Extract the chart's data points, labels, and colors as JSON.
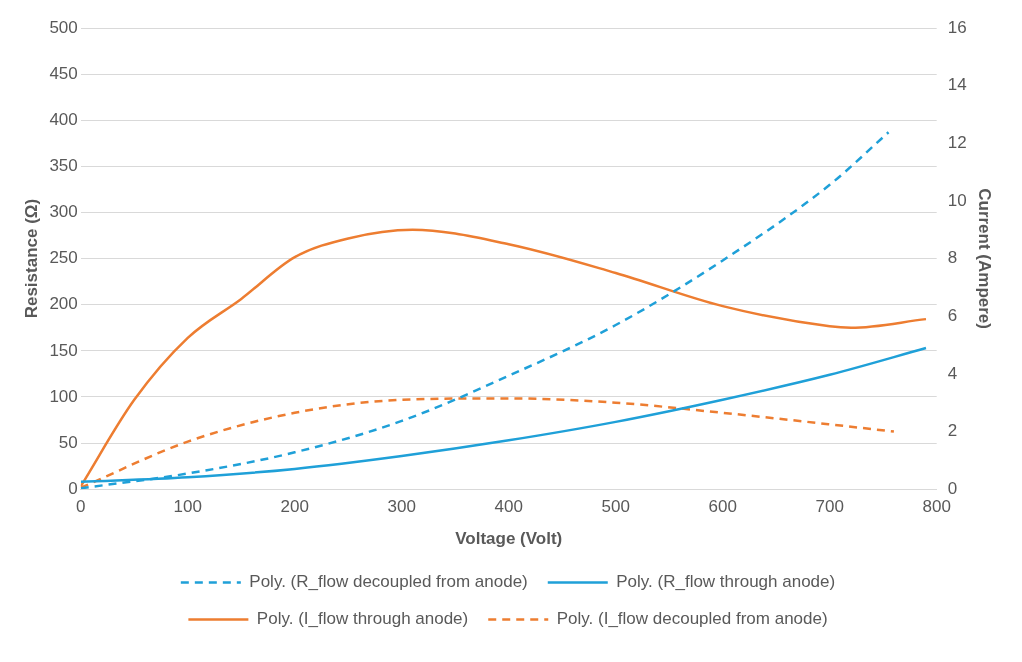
{
  "chart_data": {
    "type": "line",
    "xlabel": "Voltage (Volt)",
    "ylabel": "Resistance (Ω)",
    "y2label": "Current (Ampere)",
    "xlim": [
      0,
      800
    ],
    "xticks": [
      0,
      100,
      200,
      300,
      400,
      500,
      600,
      700,
      800
    ],
    "ylim": [
      0,
      500
    ],
    "yticks": [
      0,
      50,
      100,
      150,
      200,
      250,
      300,
      350,
      400,
      450,
      500
    ],
    "y2lim": [
      0,
      16
    ],
    "y2ticks": [
      0,
      2,
      4,
      6,
      8,
      10,
      12,
      14,
      16
    ],
    "grid": "y",
    "legend": "bottom",
    "marker": "none",
    "series": [
      {
        "name": "Poly. (R_flow decoupled from anode)",
        "color": "#1fa0d8",
        "line_style": "dashed",
        "x": [
          0,
          100,
          200,
          300,
          400,
          500,
          600,
          700,
          755
        ],
        "values": [
          1,
          17,
          40,
          74,
          123,
          178,
          248,
          330,
          387
        ]
      },
      {
        "name": "Poly. (R_flow through anode)",
        "color": "#1fa0d8",
        "line_style": "solid",
        "x": [
          0,
          100,
          200,
          300,
          400,
          500,
          600,
          700,
          790
        ],
        "values": [
          8,
          13,
          22,
          36,
          53,
          73,
          97,
          124,
          153
        ]
      },
      {
        "name": "Poly. (I_flow through anode)",
        "color": "#ed7d31",
        "line_style": "solid",
        "axis": "y2",
        "x": [
          0,
          50,
          100,
          150,
          200,
          250,
          310,
          400,
          500,
          600,
          700,
          720,
          790
        ],
        "values": [
          0.1,
          3.1,
          5.25,
          6.6,
          8.05,
          8.7,
          9.0,
          8.5,
          7.5,
          6.35,
          5.65,
          5.6,
          5.9
        ]
      },
      {
        "name": "Poly. (I_flow decoupled from anode)",
        "color": "#ed7d31",
        "line_style": "dashed",
        "axis": "y2",
        "x": [
          0,
          100,
          200,
          300,
          400,
          500,
          600,
          700,
          760
        ],
        "values": [
          0.05,
          1.65,
          2.65,
          3.1,
          3.15,
          3.0,
          2.65,
          2.25,
          2.0
        ]
      }
    ]
  }
}
